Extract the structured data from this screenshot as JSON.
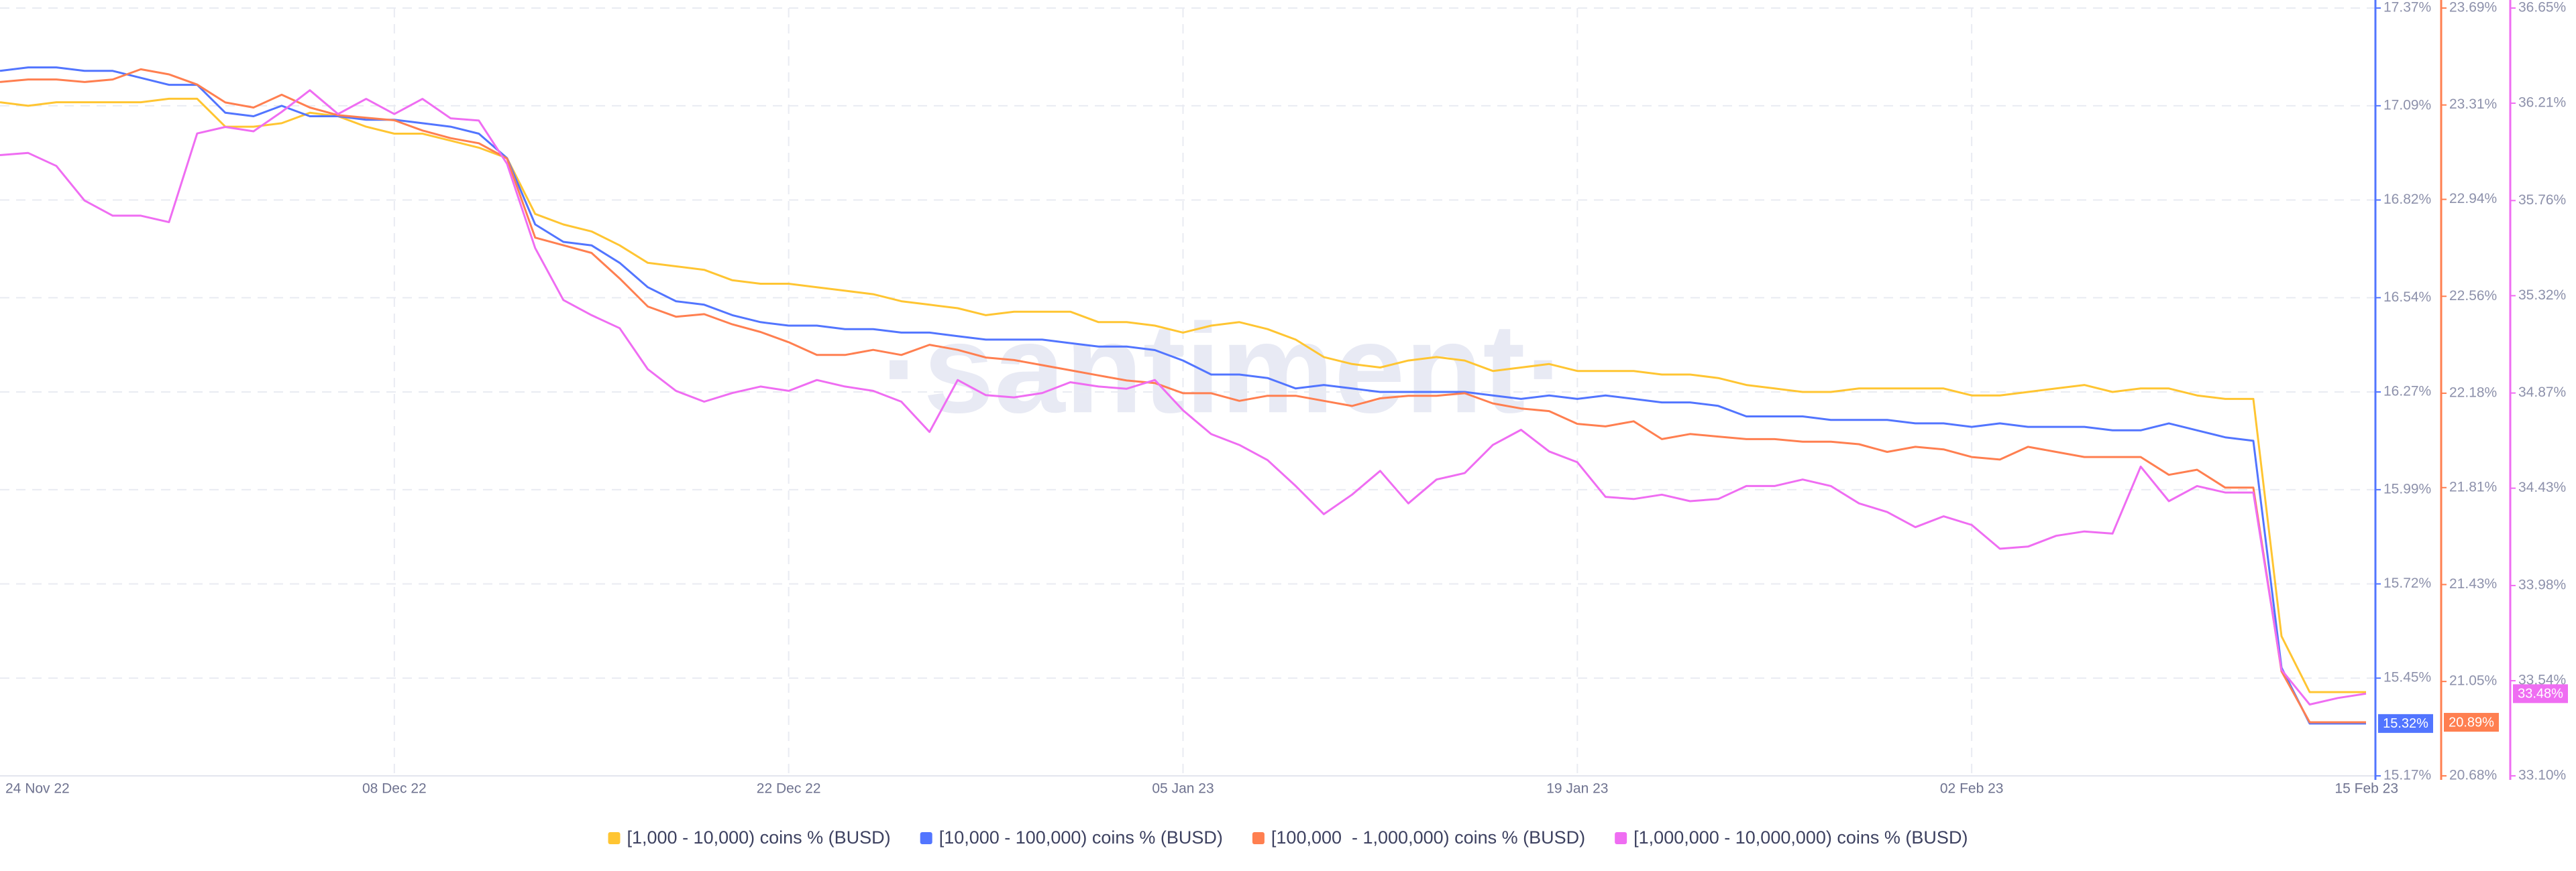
{
  "chart_data": {
    "type": "line",
    "watermark": "·santiment·",
    "x": [
      "2022-11-24",
      "2022-11-25",
      "2022-11-26",
      "2022-11-27",
      "2022-11-28",
      "2022-11-29",
      "2022-11-30",
      "2022-12-01",
      "2022-12-02",
      "2022-12-03",
      "2022-12-04",
      "2022-12-05",
      "2022-12-06",
      "2022-12-07",
      "2022-12-08",
      "2022-12-09",
      "2022-12-10",
      "2022-12-11",
      "2022-12-12",
      "2022-12-13",
      "2022-12-14",
      "2022-12-15",
      "2022-12-16",
      "2022-12-17",
      "2022-12-18",
      "2022-12-19",
      "2022-12-20",
      "2022-12-21",
      "2022-12-22",
      "2022-12-23",
      "2022-12-24",
      "2022-12-25",
      "2022-12-26",
      "2022-12-27",
      "2022-12-28",
      "2022-12-29",
      "2022-12-30",
      "2022-12-31",
      "2023-01-01",
      "2023-01-02",
      "2023-01-03",
      "2023-01-04",
      "2023-01-05",
      "2023-01-06",
      "2023-01-07",
      "2023-01-08",
      "2023-01-09",
      "2023-01-10",
      "2023-01-11",
      "2023-01-12",
      "2023-01-13",
      "2023-01-14",
      "2023-01-15",
      "2023-01-16",
      "2023-01-17",
      "2023-01-18",
      "2023-01-19",
      "2023-01-20",
      "2023-01-21",
      "2023-01-22",
      "2023-01-23",
      "2023-01-24",
      "2023-01-25",
      "2023-01-26",
      "2023-01-27",
      "2023-01-28",
      "2023-01-29",
      "2023-01-30",
      "2023-01-31",
      "2023-02-01",
      "2023-02-02",
      "2023-02-03",
      "2023-02-04",
      "2023-02-05",
      "2023-02-06",
      "2023-02-07",
      "2023-02-08",
      "2023-02-09",
      "2023-02-10",
      "2023-02-11",
      "2023-02-12",
      "2023-02-13",
      "2023-02-14",
      "2023-02-15",
      "2023-02-16"
    ],
    "xlim": [
      "2022-11-24",
      "2023-02-16"
    ],
    "xticks": [
      {
        "value": "2022-11-24",
        "label": "24 Nov 22"
      },
      {
        "value": "2022-12-08",
        "label": "08 Dec 22"
      },
      {
        "value": "2022-12-22",
        "label": "22 Dec 22"
      },
      {
        "value": "2023-01-05",
        "label": "05 Jan 23"
      },
      {
        "value": "2023-01-19",
        "label": "19 Jan 23"
      },
      {
        "value": "2023-02-02",
        "label": "02 Feb 23"
      },
      {
        "value": "2023-02-15",
        "label": "15 Feb 23"
      }
    ],
    "ylim": [
      15.17,
      17.37
    ],
    "yticks": [
      {
        "value": 17.37,
        "label": "17.37%"
      },
      {
        "value": 17.09,
        "label": "17.09%"
      },
      {
        "value": 16.82,
        "label": "16.82%"
      },
      {
        "value": 16.54,
        "label": "16.54%"
      },
      {
        "value": 16.27,
        "label": "16.27%"
      },
      {
        "value": 15.99,
        "label": "15.99%"
      },
      {
        "value": 15.72,
        "label": "15.72%"
      },
      {
        "value": 15.45,
        "label": "15.45%"
      },
      {
        "value": 15.17,
        "label": "15.17%"
      }
    ],
    "y2lim": [
      20.68,
      23.69
    ],
    "y2ticks": [
      {
        "value": 23.69,
        "label": "23.69%"
      },
      {
        "value": 23.31,
        "label": "23.31%"
      },
      {
        "value": 22.94,
        "label": "22.94%"
      },
      {
        "value": 22.56,
        "label": "22.56%"
      },
      {
        "value": 22.18,
        "label": "22.18%"
      },
      {
        "value": 21.81,
        "label": "21.81%"
      },
      {
        "value": 21.43,
        "label": "21.43%"
      },
      {
        "value": 21.05,
        "label": "21.05%"
      },
      {
        "value": 20.68,
        "label": "20.68%"
      }
    ],
    "y3lim": [
      33.1,
      36.65
    ],
    "y3ticks": [
      {
        "value": 36.65,
        "label": "36.65%"
      },
      {
        "value": 36.21,
        "label": "36.21%"
      },
      {
        "value": 35.76,
        "label": "35.76%"
      },
      {
        "value": 35.32,
        "label": "35.32%"
      },
      {
        "value": 34.87,
        "label": "34.87%"
      },
      {
        "value": 34.43,
        "label": "34.43%"
      },
      {
        "value": 33.98,
        "label": "33.98%"
      },
      {
        "value": 33.54,
        "label": "33.54%"
      },
      {
        "value": 33.1,
        "label": "33.10%"
      }
    ],
    "axis_colors": {
      "y": "#5275ff",
      "y2": "#ff7f50",
      "y3": "#ef6df2"
    },
    "grid": true,
    "legend": "bottom",
    "series": [
      {
        "name": "[1,000 - 10,000) coins % (BUSD)",
        "color": "#ffc532",
        "axis": "y",
        "values": [
          17.1,
          17.09,
          17.1,
          17.1,
          17.1,
          17.1,
          17.11,
          17.11,
          17.03,
          17.03,
          17.04,
          17.07,
          17.06,
          17.03,
          17.01,
          17.01,
          16.99,
          16.97,
          16.94,
          16.78,
          16.75,
          16.73,
          16.69,
          16.64,
          16.63,
          16.62,
          16.59,
          16.58,
          16.58,
          16.57,
          16.56,
          16.55,
          16.53,
          16.52,
          16.51,
          16.49,
          16.5,
          16.5,
          16.5,
          16.47,
          16.47,
          16.46,
          16.44,
          16.46,
          16.47,
          16.45,
          16.42,
          16.37,
          16.35,
          16.34,
          16.36,
          16.37,
          16.36,
          16.33,
          16.34,
          16.35,
          16.33,
          16.33,
          16.33,
          16.32,
          16.32,
          16.31,
          16.29,
          16.28,
          16.27,
          16.27,
          16.28,
          16.28,
          16.28,
          16.28,
          16.26,
          16.26,
          16.27,
          16.28,
          16.29,
          16.27,
          16.28,
          16.28,
          16.26,
          16.25,
          16.25,
          15.57,
          15.41,
          15.41,
          15.41
        ]
      },
      {
        "name": "[10,000 - 100,000) coins % (BUSD)",
        "color": "#5275ff",
        "axis": "y",
        "values": [
          17.19,
          17.2,
          17.2,
          17.19,
          17.19,
          17.17,
          17.15,
          17.15,
          17.07,
          17.06,
          17.09,
          17.06,
          17.06,
          17.05,
          17.05,
          17.04,
          17.03,
          17.01,
          16.94,
          16.75,
          16.7,
          16.69,
          16.64,
          16.57,
          16.53,
          16.52,
          16.49,
          16.47,
          16.46,
          16.46,
          16.45,
          16.45,
          16.44,
          16.44,
          16.43,
          16.42,
          16.42,
          16.42,
          16.41,
          16.4,
          16.4,
          16.39,
          16.36,
          16.32,
          16.32,
          16.31,
          16.28,
          16.29,
          16.28,
          16.27,
          16.27,
          16.27,
          16.27,
          16.26,
          16.25,
          16.26,
          16.25,
          16.26,
          16.25,
          16.24,
          16.24,
          16.23,
          16.2,
          16.2,
          16.2,
          16.19,
          16.19,
          16.19,
          16.18,
          16.18,
          16.17,
          16.18,
          16.17,
          16.17,
          16.17,
          16.16,
          16.16,
          16.18,
          16.16,
          16.14,
          16.13,
          15.48,
          15.32,
          15.32,
          15.32
        ],
        "value_labels": [
          null,
          null,
          null,
          null,
          null,
          null,
          null,
          null,
          null,
          null,
          null,
          null,
          null,
          null,
          null,
          null,
          null,
          null,
          null,
          null,
          null,
          null,
          null,
          null,
          null,
          null,
          null,
          null,
          null,
          null,
          null,
          null,
          null,
          null,
          null,
          null,
          null,
          null,
          null,
          null,
          null,
          null,
          null,
          null,
          null,
          null,
          null,
          null,
          null,
          null,
          null,
          null,
          null,
          null,
          null,
          null,
          null,
          null,
          null,
          null,
          null,
          null,
          null,
          null,
          null,
          null,
          null,
          null,
          null,
          null,
          null,
          null,
          null,
          null,
          null,
          null,
          null,
          null,
          null,
          null,
          null,
          null,
          null,
          null,
          "15.32%"
        ]
      },
      {
        "name": "[100,000  - 1,000,000) coins % (BUSD)",
        "color": "#ff7f50",
        "axis": "y2",
        "values": [
          23.4,
          23.41,
          23.41,
          23.4,
          23.41,
          23.45,
          23.43,
          23.39,
          23.32,
          23.3,
          23.35,
          23.3,
          23.27,
          23.26,
          23.25,
          23.21,
          23.18,
          23.16,
          23.1,
          22.79,
          22.76,
          22.73,
          22.63,
          22.52,
          22.48,
          22.49,
          22.45,
          22.42,
          22.38,
          22.33,
          22.33,
          22.35,
          22.33,
          22.37,
          22.35,
          22.32,
          22.31,
          22.29,
          22.27,
          22.25,
          22.23,
          22.22,
          22.18,
          22.18,
          22.15,
          22.17,
          22.17,
          22.15,
          22.13,
          22.16,
          22.17,
          22.17,
          22.18,
          22.14,
          22.12,
          22.11,
          22.06,
          22.05,
          22.07,
          22.0,
          22.02,
          22.01,
          22.0,
          22.0,
          21.99,
          21.99,
          21.98,
          21.95,
          21.97,
          21.96,
          21.93,
          21.92,
          21.97,
          21.95,
          21.93,
          21.93,
          21.93,
          21.86,
          21.88,
          21.81,
          21.81,
          21.09,
          20.89,
          20.89,
          20.89
        ],
        "value_labels": [
          null,
          null,
          null,
          null,
          null,
          null,
          null,
          null,
          null,
          null,
          null,
          null,
          null,
          null,
          null,
          null,
          null,
          null,
          null,
          null,
          null,
          null,
          null,
          null,
          null,
          null,
          null,
          null,
          null,
          null,
          null,
          null,
          null,
          null,
          null,
          null,
          null,
          null,
          null,
          null,
          null,
          null,
          null,
          null,
          null,
          null,
          null,
          null,
          null,
          null,
          null,
          null,
          null,
          null,
          null,
          null,
          null,
          null,
          null,
          null,
          null,
          null,
          null,
          null,
          null,
          null,
          null,
          null,
          null,
          null,
          null,
          null,
          null,
          null,
          null,
          null,
          null,
          null,
          null,
          null,
          null,
          null,
          null,
          null,
          "20.89%"
        ]
      },
      {
        "name": "[1,000,000 - 10,000,000) coins % (BUSD)",
        "color": "#ef6df2",
        "axis": "y3",
        "values": [
          35.97,
          35.98,
          35.92,
          35.76,
          35.69,
          35.69,
          35.66,
          36.07,
          36.1,
          36.08,
          36.17,
          36.27,
          36.16,
          36.23,
          36.16,
          36.23,
          36.14,
          36.13,
          35.93,
          35.54,
          35.3,
          35.23,
          35.17,
          34.98,
          34.88,
          34.83,
          34.87,
          34.9,
          34.88,
          34.93,
          34.9,
          34.88,
          34.83,
          34.69,
          34.93,
          34.86,
          34.85,
          34.87,
          34.92,
          34.9,
          34.89,
          34.93,
          34.79,
          34.68,
          34.63,
          34.56,
          34.44,
          34.31,
          34.4,
          34.51,
          34.36,
          34.47,
          34.5,
          34.63,
          34.7,
          34.6,
          34.55,
          34.39,
          34.38,
          34.4,
          34.37,
          34.38,
          34.44,
          34.44,
          34.47,
          34.44,
          34.36,
          34.32,
          34.25,
          34.3,
          34.26,
          34.15,
          34.16,
          34.21,
          34.23,
          34.22,
          34.53,
          34.37,
          34.44,
          34.41,
          34.41,
          33.59,
          33.43,
          33.46,
          33.48
        ],
        "value_labels": [
          null,
          null,
          null,
          null,
          null,
          null,
          null,
          null,
          null,
          null,
          null,
          null,
          null,
          null,
          null,
          null,
          null,
          null,
          null,
          null,
          null,
          null,
          null,
          null,
          null,
          null,
          null,
          null,
          null,
          null,
          null,
          null,
          null,
          null,
          null,
          null,
          null,
          null,
          null,
          null,
          null,
          null,
          null,
          null,
          null,
          null,
          null,
          null,
          null,
          null,
          null,
          null,
          null,
          null,
          null,
          null,
          null,
          null,
          null,
          null,
          null,
          null,
          null,
          null,
          null,
          null,
          null,
          null,
          null,
          null,
          null,
          null,
          null,
          null,
          null,
          null,
          null,
          null,
          null,
          null,
          null,
          null,
          null,
          null,
          "33.48%"
        ]
      }
    ]
  }
}
